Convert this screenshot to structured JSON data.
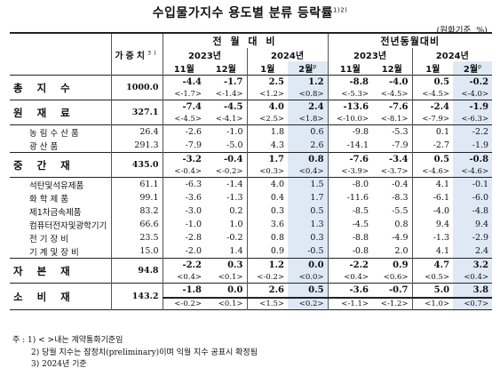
{
  "title": "수입물가지수 용도별 분류 등락률",
  "title_sup": "1)2)",
  "unit": "(원화기준, %)",
  "header": {
    "weight_label": "가중치",
    "weight_sup": "3)",
    "group_mom": "전 월 대 비",
    "group_yoy": "전년동월대비",
    "year_2023": "2023년",
    "year_2024": "2024년",
    "months": [
      "11월",
      "12월",
      "1월",
      "2월"
    ],
    "prelim_mark": "p"
  },
  "rows": [
    {
      "name": "총 지 수",
      "weight": "1000.0",
      "big": true,
      "main": [
        "-4.4",
        "-1.7",
        "2.5",
        "1.2",
        "-8.8",
        "-4.0",
        "0.5",
        "-0.2"
      ],
      "sub": [
        "<-1.7>",
        "<-1.4>",
        "<1.2>",
        "<0.8>",
        "<-5.3>",
        "<-4.5>",
        "<-4.5>",
        "<-4.0>"
      ]
    },
    {
      "name": "원 재 료",
      "weight": "327.1",
      "big": true,
      "main": [
        "-7.4",
        "-4.5",
        "4.0",
        "2.4",
        "-13.6",
        "-7.6",
        "-2.4",
        "-1.9"
      ],
      "sub": [
        "<-4.5>",
        "<-4.1>",
        "<2.5>",
        "<1.8>",
        "<-10.0>",
        "<-8.1>",
        "<-7.9>",
        "<-6.3>"
      ]
    },
    {
      "name": "농 림 수 산 품",
      "weight": "26.4",
      "big": false,
      "main": [
        "-2.6",
        "-1.0",
        "1.8",
        "0.6",
        "-9.8",
        "-5.3",
        "0.1",
        "-2.2"
      ]
    },
    {
      "name": "광 산 품",
      "weight": "291.3",
      "big": false,
      "main": [
        "-7.9",
        "-5.0",
        "4.3",
        "2.6",
        "-14.1",
        "-7.9",
        "-2.7",
        "-1.9"
      ]
    },
    {
      "name": "중 간 재",
      "weight": "435.0",
      "big": true,
      "main": [
        "-3.2",
        "-0.4",
        "1.7",
        "0.8",
        "-7.6",
        "-3.4",
        "0.5",
        "-0.8"
      ],
      "sub": [
        "<-0.4>",
        "<-0.2>",
        "<0.3>",
        "<0.4>",
        "<-3.9>",
        "<-3.7>",
        "<-4.6>",
        "<-4.6>"
      ]
    },
    {
      "name": "석탄및석유제품",
      "weight": "61.1",
      "big": false,
      "main": [
        "-6.3",
        "-1.4",
        "4.0",
        "1.5",
        "-8.0",
        "-0.4",
        "4.1",
        "-0.1"
      ]
    },
    {
      "name": "화 학 제 품",
      "weight": "99.1",
      "big": false,
      "main": [
        "-3.6",
        "-1.3",
        "0.4",
        "1.7",
        "-11.6",
        "-8.3",
        "-6.1",
        "-6.0"
      ]
    },
    {
      "name": "제1차금속제품",
      "weight": "83.2",
      "big": false,
      "main": [
        "-3.0",
        "0.2",
        "0.3",
        "0.5",
        "-8.5",
        "-5.5",
        "-4.0",
        "-4.8"
      ]
    },
    {
      "name": "컴퓨터전자및광학기기",
      "weight": "66.6",
      "big": false,
      "main": [
        "-1.0",
        "1.0",
        "3.6",
        "1.3",
        "-4.5",
        "0.8",
        "9.4",
        "9.4"
      ]
    },
    {
      "name": "전 기 장 비",
      "weight": "23.5",
      "big": false,
      "main": [
        "-2.8",
        "-0.2",
        "0.8",
        "0.3",
        "-8.8",
        "-4.9",
        "-1.3",
        "-2.9"
      ]
    },
    {
      "name": "기 계 및 장 비",
      "weight": "15.0",
      "big": false,
      "main": [
        "-2.0",
        "1.4",
        "0.9",
        "-0.5",
        "-0.8",
        "2.0",
        "4.1",
        "2.4"
      ]
    },
    {
      "name": "자 본 재",
      "weight": "94.8",
      "big": true,
      "main": [
        "-2.2",
        "0.3",
        "1.2",
        "0.0",
        "-2.2",
        "0.9",
        "4.7",
        "3.2"
      ],
      "sub": [
        "<0.4>",
        "<0.1>",
        "<-0.2>",
        "<0.0>",
        "<0.4>",
        "<0.6>",
        "<0.5>",
        "<0.4>"
      ]
    },
    {
      "name": "소 비 재",
      "weight": "143.2",
      "big": true,
      "main": [
        "-1.8",
        "0.0",
        "2.6",
        "0.5",
        "-3.6",
        "-0.7",
        "5.0",
        "3.8"
      ],
      "sub": [
        "<-0.2>",
        "<0.1>",
        "<1.5>",
        "<0.2>",
        "<-1.1>",
        "<-1.2>",
        "<1.0>",
        "<0.7>"
      ]
    }
  ],
  "notes": [
    "주 : 1) < >내는 계약통화기준임",
    "2) 당월 지수는 잠정치(preliminary)이며 익월 지수 공표시 확정됨",
    "3) 2024년 기준"
  ],
  "colors": {
    "shade": "#dfe9f5"
  }
}
